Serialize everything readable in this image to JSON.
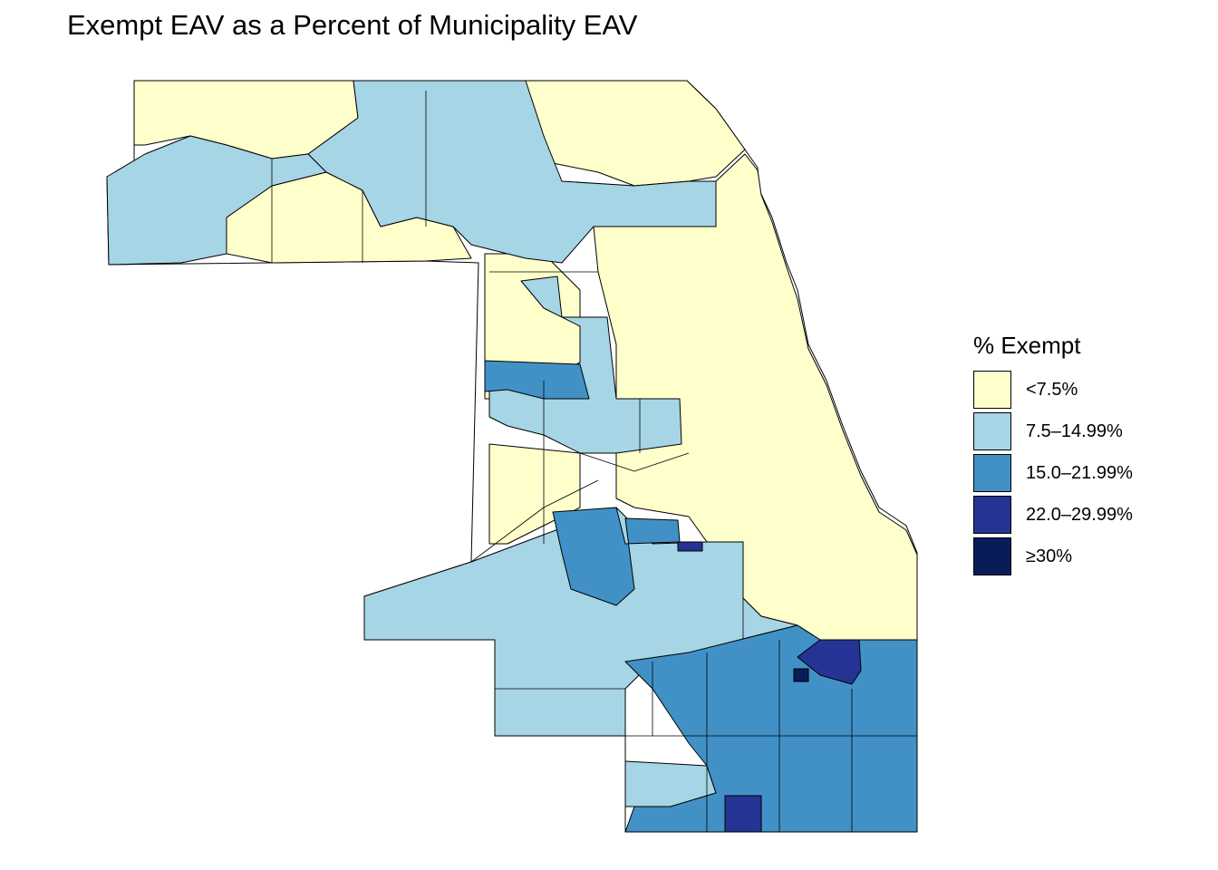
{
  "title": "Exempt EAV as a Percent of Municipality EAV",
  "legend": {
    "title": "% Exempt",
    "items": [
      {
        "label": "<7.5%",
        "color": "#ffffcc"
      },
      {
        "label": "7.5–14.99%",
        "color": "#a6d5e5"
      },
      {
        "label": "15.0–21.99%",
        "color": "#4191c6"
      },
      {
        "label": "22.0–29.99%",
        "color": "#253494"
      },
      {
        "label": "≥30%",
        "color": "#081d58"
      }
    ]
  }
}
